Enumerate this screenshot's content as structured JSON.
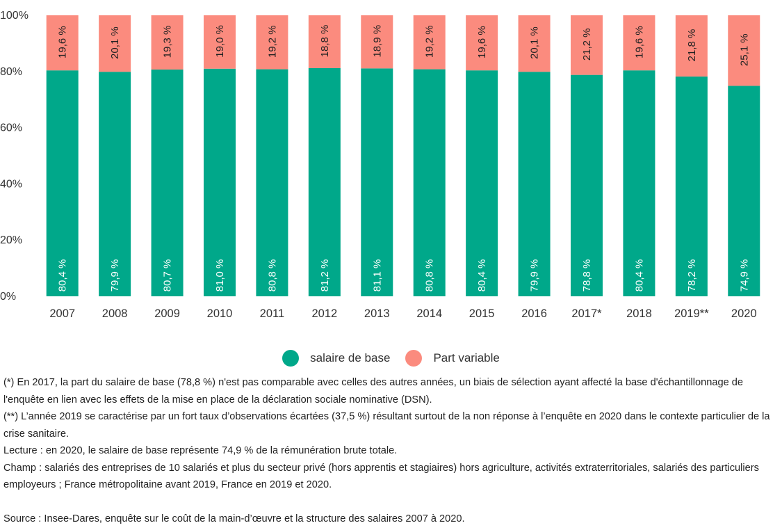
{
  "chart_data": {
    "type": "bar",
    "stacked": true,
    "categories": [
      "2007",
      "2008",
      "2009",
      "2010",
      "2011",
      "2012",
      "2013",
      "2014",
      "2015",
      "2016",
      "2017*",
      "2018",
      "2019**",
      "2020"
    ],
    "series": [
      {
        "name": "salaire de base",
        "color": "#00a88a",
        "values": [
          80.4,
          79.9,
          80.7,
          81.0,
          80.8,
          81.2,
          81.1,
          80.8,
          80.4,
          79.9,
          78.8,
          80.4,
          78.2,
          74.9
        ],
        "labels": [
          "80,4 %",
          "79,9 %",
          "80,7 %",
          "81,0 %",
          "80,8 %",
          "81,2 %",
          "81,1 %",
          "80,8 %",
          "80,4 %",
          "79,9 %",
          "78,8 %",
          "80,4 %",
          "78,2 %",
          "74,9 %"
        ]
      },
      {
        "name": "Part variable",
        "color": "#fb8b7e",
        "values": [
          19.6,
          20.1,
          19.3,
          19.0,
          19.2,
          18.8,
          18.9,
          19.2,
          19.6,
          20.1,
          21.2,
          19.6,
          21.8,
          25.1
        ],
        "labels": [
          "19,6 %",
          "20,1 %",
          "19,3 %",
          "19,0 %",
          "19,2 %",
          "18,8 %",
          "18,9 %",
          "19,2 %",
          "19,6 %",
          "20,1 %",
          "21,2 %",
          "19,6 %",
          "21,8 %",
          "25,1 %"
        ]
      }
    ],
    "ylim": [
      0,
      100
    ],
    "yticks": [
      "0%",
      "20%",
      "40%",
      "60%",
      "80%",
      "100%"
    ],
    "grid": false,
    "legend_position": "bottom-center"
  },
  "notes": {
    "note_2017": "(*) En 2017, la part du salaire de base (78,8 %) n'est pas comparable avec celles des autres années, un biais de sélection ayant affecté la base d'échantillonnage de l'enquête en lien avec les effets de la mise en place de la déclaration sociale nominative (DSN).",
    "note_2019": "(**) L’année 2019 se caractérise par un fort taux d’observations écartées (37,5 %) résultant surtout de la non réponse à l’enquête en 2020 dans le contexte particulier de la crise sanitaire.",
    "lecture": "Lecture : en 2020, le salaire de base représente 74,9 % de la rémunération brute totale.",
    "champ": "Champ : salariés des entreprises de 10 salariés et plus du secteur privé (hors apprentis et stagiaires) hors agriculture, activités extraterritoriales, salariés des particuliers employeurs ; France métropolitaine avant 2019, France en 2019 et 2020.",
    "source": "Source : Insee-Dares, enquête sur le coût de la main-d’œuvre et la structure des salaires 2007 à 2020."
  }
}
